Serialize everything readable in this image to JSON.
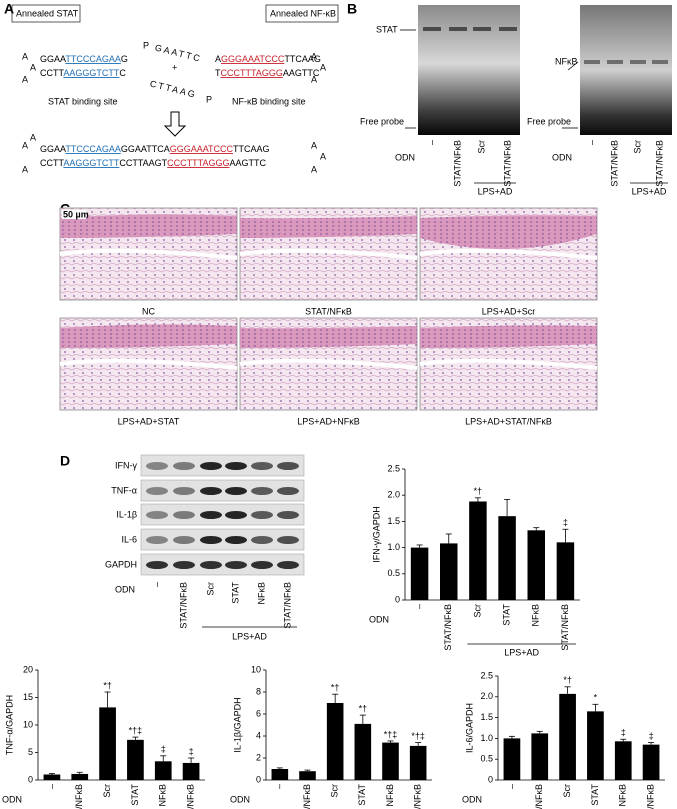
{
  "panel_a": {
    "label": "A",
    "stat_box": "Annealed STAT",
    "nfkb_box": "Annealed NF-κB",
    "loop_base": "A",
    "phosphate": "P",
    "plus": "+",
    "stat_top": [
      "GGAA",
      "TTCCCAGAA",
      "G"
    ],
    "stat_bottom": [
      "CCTT",
      "AAGGGTCTT",
      "C"
    ],
    "linker_top": "GAATTC",
    "linker_bottom": "CTTAAG",
    "nfkb_top": [
      "A",
      "GGGAAATCCC",
      "TTCAAG"
    ],
    "nfkb_bottom": [
      "T",
      "CCCTTTAGGG",
      "AAGTTC"
    ],
    "stat_site": "STAT binding site",
    "nfkb_site": "NF-κB binding site",
    "product_top": [
      "GGAA",
      "TTCCCAGAA",
      "GGAATTCA",
      "GGGAAATCCC",
      "TTCAAG"
    ],
    "product_bottom": [
      "CCTT",
      "AAGGGTCTT",
      "CCTTAAGT",
      "CCCTTTAGGG",
      "AAGTTC"
    ]
  },
  "panel_b": {
    "label": "B",
    "stat_band": "STAT",
    "nfkb_band": "NFκB",
    "free_probe": "Free probe",
    "odn": "ODN",
    "lanes": [
      "–",
      "STAT/NFκB",
      "Scr",
      "STAT/NFκB"
    ],
    "group": "LPS+AD"
  },
  "panel_c": {
    "label": "C",
    "scale_bar": "50 µm",
    "captions": [
      "NC",
      "STAT/NFκB",
      "LPS+AD+Scr",
      "LPS+AD+STAT",
      "LPS+AD+NFκB",
      "LPS+AD+STAT/NFκB"
    ]
  },
  "panel_d": {
    "label": "D",
    "proteins": [
      "IFN-γ",
      "TNF-α",
      "IL-1β",
      "IL-6",
      "GAPDH"
    ],
    "odn": "ODN",
    "lanes": [
      "–",
      "STAT/NFκB",
      "Scr",
      "STAT",
      "NFκB",
      "STAT/NFκB"
    ],
    "group": "LPS+AD"
  },
  "chart_data": [
    {
      "type": "bar",
      "y_label": "IFN-γ/GAPDH",
      "x_label": "ODN",
      "group": "LPS+AD",
      "color": "#000000",
      "categories": [
        "–",
        "STAT/NFκB",
        "Scr",
        "STAT",
        "NFκB",
        "STAT/NFκB"
      ],
      "values": [
        1.0,
        1.08,
        1.88,
        1.6,
        1.33,
        1.1
      ],
      "errors": [
        0.05,
        0.18,
        0.07,
        0.32,
        0.05,
        0.25
      ],
      "annotations": [
        null,
        null,
        "*†",
        null,
        null,
        "‡"
      ],
      "ylim": [
        0,
        2.5
      ],
      "yticks": [
        0,
        0.5,
        {
          "value": 1,
          "label": "1.0"
        },
        1.5,
        {
          "value": 2,
          "label": "2.0"
        },
        2.5
      ]
    },
    {
      "type": "bar",
      "y_label": "TNF-α/GAPDH",
      "x_label": "ODN",
      "group": "LPS+AD",
      "color": "#000000",
      "categories": [
        "–",
        "STAT/NFκB",
        "Scr",
        "STAT",
        "NFκB",
        "STAT/NFκB"
      ],
      "values": [
        1.0,
        1.1,
        13.2,
        7.3,
        3.4,
        3.1
      ],
      "errors": [
        0.2,
        0.3,
        2.8,
        0.5,
        1.0,
        0.9
      ],
      "annotations": [
        null,
        null,
        "*†",
        "*†‡",
        "‡",
        "‡"
      ],
      "ylim": [
        0,
        20
      ],
      "yticks": [
        0,
        5,
        10,
        15,
        20
      ]
    },
    {
      "type": "bar",
      "y_label": "IL-1β/GAPDH",
      "x_label": "ODN",
      "group": "LPS+AD",
      "color": "#000000",
      "categories": [
        "–",
        "STAT/NFκB",
        "Scr",
        "STAT",
        "NFκB",
        "STAT/NFκB"
      ],
      "values": [
        1.0,
        0.8,
        7.0,
        5.1,
        3.4,
        3.1
      ],
      "errors": [
        0.1,
        0.1,
        0.8,
        0.8,
        0.15,
        0.3
      ],
      "annotations": [
        null,
        null,
        "*†",
        "*†",
        "*†‡",
        "*†‡"
      ],
      "ylim": [
        0,
        10
      ],
      "yticks": [
        0,
        2,
        4,
        6,
        8,
        10
      ]
    },
    {
      "type": "bar",
      "y_label": "IL-6/GAPDH",
      "x_label": "ODN",
      "group": "LPS+AD",
      "color": "#000000",
      "categories": [
        "–",
        "STAT/NFκB",
        "Scr",
        "STAT",
        "NFκB",
        "STAT/NFκB"
      ],
      "values": [
        1.0,
        1.12,
        2.07,
        1.65,
        0.93,
        0.85
      ],
      "errors": [
        0.05,
        0.05,
        0.17,
        0.17,
        0.05,
        0.05
      ],
      "annotations": [
        null,
        null,
        "*†",
        "*",
        "‡",
        "‡"
      ],
      "ylim": [
        0,
        2.5
      ],
      "yticks": [
        0,
        0.5,
        {
          "value": 1,
          "label": "1.0"
        },
        1.5,
        {
          "value": 2,
          "label": "2.0"
        },
        2.5
      ]
    }
  ]
}
